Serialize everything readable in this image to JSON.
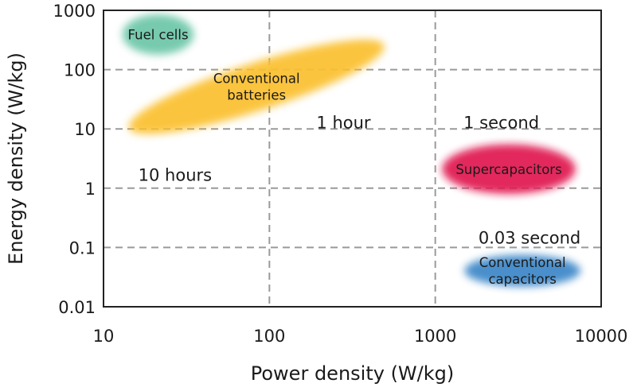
{
  "chart_data": {
    "type": "scatter",
    "title": "",
    "xlabel": "Power density (W/kg)",
    "ylabel": "Energy density (W/kg)",
    "x_scale": "log",
    "y_scale": "log",
    "xlim": [
      10,
      10000
    ],
    "ylim": [
      0.01,
      1000
    ],
    "x_ticks": [
      {
        "value": 10,
        "label": "10"
      },
      {
        "value": 100,
        "label": "100"
      },
      {
        "value": 1000,
        "label": "1000"
      },
      {
        "value": 10000,
        "label": "10000"
      }
    ],
    "y_ticks": [
      {
        "value": 0.01,
        "label": "0.01"
      },
      {
        "value": 0.1,
        "label": "0.1"
      },
      {
        "value": 1,
        "label": "1"
      },
      {
        "value": 10,
        "label": "10"
      },
      {
        "value": 100,
        "label": "100"
      },
      {
        "value": 1000,
        "label": "1000"
      }
    ],
    "grid": "dashed, at major ticks",
    "regions": [
      {
        "name": "Fuel cells",
        "lines": [
          "Fuel cells"
        ],
        "color": "#6cc6a8",
        "power_range": [
          13,
          35
        ],
        "energy_range": [
          180,
          850
        ],
        "tilt": 0
      },
      {
        "name": "Conventional batteries",
        "lines": [
          "Conventional",
          "batteries"
        ],
        "color": "#fbc02d",
        "power_range": [
          14,
          500
        ],
        "energy_range": [
          12,
          220
        ],
        "tilt": -18
      },
      {
        "name": "Supercapacitors",
        "lines": [
          "Supercapacitors"
        ],
        "color": "#e0124f",
        "power_range": [
          1100,
          7000
        ],
        "energy_range": [
          0.8,
          5.5
        ],
        "tilt": 0
      },
      {
        "name": "Conventional capacitors",
        "lines": [
          "Conventional",
          "capacitors"
        ],
        "color": "#3a86c8",
        "power_range": [
          1500,
          7500
        ],
        "energy_range": [
          0.022,
          0.075
        ],
        "tilt": 0
      }
    ],
    "annotations": [
      {
        "text": "1 hour",
        "x": 280,
        "y": 13
      },
      {
        "text": "1 second",
        "x": 2500,
        "y": 13
      },
      {
        "text": "10 hours",
        "x": 27,
        "y": 1.7
      },
      {
        "text": "0.03 second",
        "x": 3700,
        "y": 0.15
      }
    ]
  }
}
